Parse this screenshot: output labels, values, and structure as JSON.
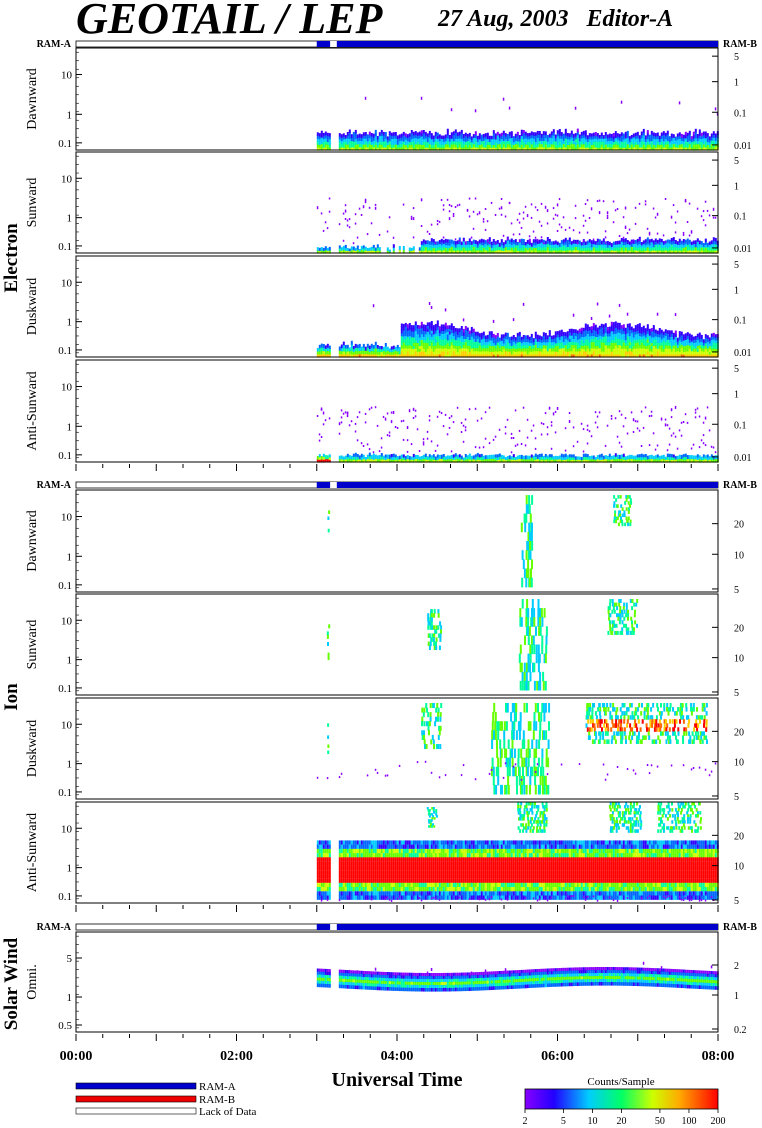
{
  "header": {
    "title": "GEOTAIL / LEP",
    "date_editor": "27 Aug, 2003   Editor-A"
  },
  "labels": {
    "ram_a": "RAM-A",
    "ram_b": "RAM-B",
    "xlabel": "Universal Time"
  },
  "legend": {
    "items": [
      {
        "label": "RAM-A",
        "color": "#0000cc"
      },
      {
        "label": "RAM-B",
        "color": "#ee0000"
      },
      {
        "label": "Lack of Data",
        "color": "#ffffff"
      }
    ]
  },
  "colorbar": {
    "title": "Counts/Sample",
    "ticks": [
      "2",
      "5",
      "10",
      "20",
      "50",
      "100",
      "200"
    ],
    "range": [
      2,
      200
    ],
    "scale": "log"
  },
  "chart_data": {
    "type": "heatmap",
    "x_range": [
      "00:00",
      "08:00"
    ],
    "x_ticks": [
      "00:00",
      "02:00",
      "04:00",
      "06:00",
      "08:00"
    ],
    "data_start": "03:00",
    "data_gap": [
      "03:10",
      "03:15"
    ],
    "groups": [
      {
        "name": "Electron",
        "status_bar": {
          "lack_until": "03:00",
          "ram_a_from": "03:00",
          "gap": [
            "03:10",
            "03:15"
          ]
        },
        "panels": [
          {
            "label": "Dawnward",
            "left_ticks": [
              "10",
              "1",
              "0.1"
            ],
            "right_ticks": [
              "5",
              "1",
              "0.1",
              "0.01"
            ],
            "activity": "electron_dawn"
          },
          {
            "label": "Sunward",
            "left_ticks": [
              "10",
              "1",
              "0.1"
            ],
            "right_ticks": [
              "5",
              "1",
              "0.1",
              "0.01"
            ],
            "activity": "electron_sun"
          },
          {
            "label": "Duskward",
            "left_ticks": [
              "10",
              "1",
              "0.1"
            ],
            "right_ticks": [
              "5",
              "1",
              "0.1",
              "0.01"
            ],
            "activity": "electron_dusk"
          },
          {
            "label": "Anti-Sunward",
            "left_ticks": [
              "10",
              "1",
              "0.1"
            ],
            "right_ticks": [
              "5",
              "1",
              "0.1",
              "0.01"
            ],
            "activity": "electron_anti"
          }
        ]
      },
      {
        "name": "Ion",
        "status_bar": {
          "lack_until": "03:00",
          "ram_a_from": "03:00",
          "gap": [
            "03:10",
            "03:15"
          ]
        },
        "panels": [
          {
            "label": "Dawnward",
            "left_ticks": [
              "10",
              "1",
              "0.1"
            ],
            "right_ticks": [
              "20",
              "10",
              "5"
            ],
            "activity": "ion_dawn"
          },
          {
            "label": "Sunward",
            "left_ticks": [
              "10",
              "1",
              "0.1"
            ],
            "right_ticks": [
              "20",
              "10",
              "5"
            ],
            "activity": "ion_sun"
          },
          {
            "label": "Duskward",
            "left_ticks": [
              "10",
              "1",
              "0.1"
            ],
            "right_ticks": [
              "20",
              "10",
              "5"
            ],
            "activity": "ion_dusk"
          },
          {
            "label": "Anti-Sunward",
            "left_ticks": [
              "10",
              "1",
              "0.1"
            ],
            "right_ticks": [
              "20",
              "10",
              "5"
            ],
            "activity": "ion_anti"
          }
        ]
      },
      {
        "name": "Solar Wind",
        "status_bar": {
          "lack_until": "03:00",
          "ram_a_from": "03:00",
          "gap": [
            "03:10",
            "03:15"
          ]
        },
        "panels": [
          {
            "label": "Omni.",
            "left_ticks": [
              "5",
              "1",
              "0.5"
            ],
            "right_ticks": [
              "2",
              "1",
              "0.2"
            ],
            "activity": "sw_omni"
          }
        ]
      }
    ]
  }
}
